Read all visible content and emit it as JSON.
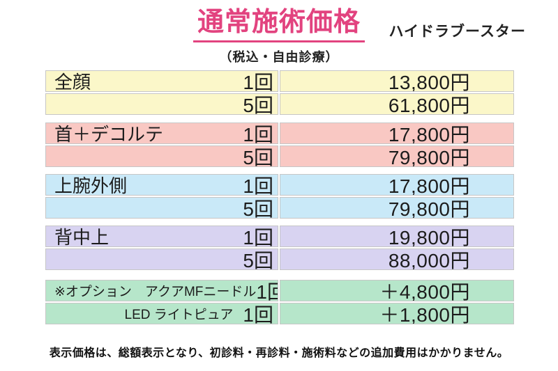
{
  "header": {
    "title": "通常施術価格",
    "title_color": "#e2437f",
    "subtitle": "（税込・自由診療）",
    "product": "ハイドラブースター"
  },
  "price_table": {
    "border_color": "#c6c6c6",
    "blocks": [
      {
        "name": "全顔",
        "color": "#fbf7c9",
        "rows": [
          {
            "label": "全顔",
            "count": "1回",
            "price": "13,800円"
          },
          {
            "label": "",
            "count": "5回",
            "price": "61,800円"
          }
        ]
      },
      {
        "name": "首＋デコルテ",
        "color": "#f9c8c3",
        "rows": [
          {
            "label": "首＋デコルテ",
            "count": "1回",
            "price": "17,800円"
          },
          {
            "label": "",
            "count": "5回",
            "price": "79,800円"
          }
        ]
      },
      {
        "name": "上腕外側",
        "color": "#c9e9f8",
        "rows": [
          {
            "label": "上腕外側",
            "count": "1回",
            "price": "17,800円"
          },
          {
            "label": "",
            "count": "5回",
            "price": "79,800円"
          }
        ]
      },
      {
        "name": "背中上",
        "color": "#d8d3f1",
        "rows": [
          {
            "label": "背中上",
            "count": "1回",
            "price": "19,800円"
          },
          {
            "label": "",
            "count": "5回",
            "price": "88,000円"
          }
        ]
      },
      {
        "name": "オプション",
        "color": "#b6e6ca",
        "rows": [
          {
            "label": "※オプション　アクアMFニードル",
            "count": "1回",
            "price": "＋4,800円"
          },
          {
            "label": "LED ライトピュア",
            "count": "1回",
            "price": "＋1,800円"
          }
        ]
      }
    ]
  },
  "footer": {
    "note": "表示価格は、総額表示となり、初診料・再診料・施術料などの追加費用はかかりません。"
  }
}
